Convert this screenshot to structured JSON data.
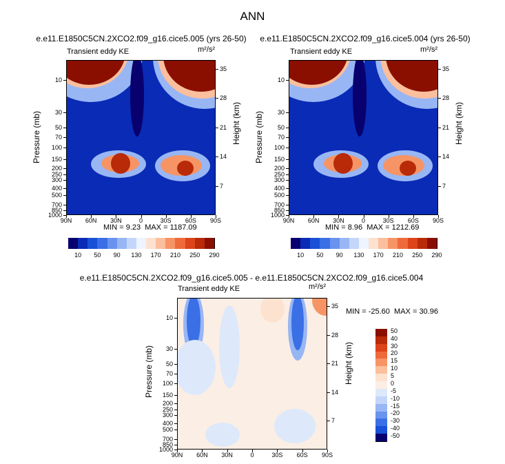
{
  "page_title": "ANN",
  "panels": [
    {
      "title": "e.e11.E1850C5CN.2XCO2.f09_g16.cice5.005 (yrs 26-50)",
      "variable": "Transient eddy KE",
      "units": "m²/s²",
      "min_label": "MIN =",
      "min_value": "9.23",
      "max_label": "MAX =",
      "max_value": "1187.09"
    },
    {
      "title": "e.e11.E1850C5CN.2XCO2.f09_g16.cice5.004 (yrs 26-50)",
      "variable": "Transient eddy KE",
      "units": "m²/s²",
      "min_label": "MIN =",
      "min_value": "8.96",
      "max_label": "MAX =",
      "max_value": "1212.69"
    },
    {
      "title": "e.e11.E1850C5CN.2XCO2.f09_g16.cice5.005 - e.e11.E1850C5CN.2XCO2.f09_g16.cice5.004",
      "variable": "Transient eddy KE",
      "units": "m²/s²",
      "min_label": "MIN =",
      "min_value": "-25.60",
      "max_label": "MAX =",
      "max_value": "30.96"
    }
  ],
  "chart_data": [
    {
      "type": "heatmap",
      "title": "e.e11.E1850C5CN.2XCO2.f09_g16.cice5.005 (yrs 26-50)",
      "xlabel": "",
      "ylabel": "Pressure (mb)",
      "ylabel_right": "Height (km)",
      "x_ticks": [
        "90N",
        "60N",
        "30N",
        "0",
        "30S",
        "60S",
        "90S"
      ],
      "y_ticks": [
        "10",
        "30",
        "50",
        "70",
        "100",
        "150",
        "200",
        "250",
        "300",
        "400",
        "500",
        "700",
        "850",
        "1000"
      ],
      "y_ticks_right": [
        "35",
        "28",
        "21",
        "14",
        "7"
      ],
      "colorbar_levels": [
        10,
        30,
        50,
        70,
        90,
        110,
        130,
        150,
        170,
        190,
        210,
        230,
        250,
        270,
        290
      ],
      "colorbar_labels": [
        "10",
        "50",
        "90",
        "130",
        "170",
        "210",
        "250",
        "290"
      ],
      "min": 9.23,
      "max": 1187.09
    },
    {
      "type": "heatmap",
      "title": "e.e11.E1850C5CN.2XCO2.f09_g16.cice5.004 (yrs 26-50)",
      "xlabel": "",
      "ylabel": "Pressure (mb)",
      "ylabel_right": "Height (km)",
      "x_ticks": [
        "90N",
        "60N",
        "30N",
        "0",
        "30S",
        "60S",
        "90S"
      ],
      "y_ticks": [
        "10",
        "30",
        "50",
        "70",
        "100",
        "150",
        "200",
        "250",
        "300",
        "400",
        "500",
        "700",
        "850",
        "1000"
      ],
      "y_ticks_right": [
        "35",
        "28",
        "21",
        "14",
        "7"
      ],
      "colorbar_levels": [
        10,
        30,
        50,
        70,
        90,
        110,
        130,
        150,
        170,
        190,
        210,
        230,
        250,
        270,
        290
      ],
      "colorbar_labels": [
        "10",
        "50",
        "90",
        "130",
        "170",
        "210",
        "250",
        "290"
      ],
      "min": 8.96,
      "max": 1212.69
    },
    {
      "type": "heatmap",
      "title": "e.e11.E1850C5CN.2XCO2.f09_g16.cice5.005 - e.e11.E1850C5CN.2XCO2.f09_g16.cice5.004",
      "xlabel": "",
      "ylabel": "Pressure (mb)",
      "ylabel_right": "Height (km)",
      "x_ticks": [
        "90N",
        "60N",
        "30N",
        "0",
        "30S",
        "60S",
        "90S"
      ],
      "y_ticks": [
        "10",
        "30",
        "50",
        "70",
        "100",
        "150",
        "200",
        "250",
        "300",
        "400",
        "500",
        "700",
        "850",
        "1000"
      ],
      "y_ticks_right": [
        "35",
        "28",
        "21",
        "14",
        "7"
      ],
      "colorbar_levels": [
        -50,
        -40,
        -30,
        -20,
        -15,
        -10,
        -5,
        0,
        5,
        10,
        15,
        20,
        30,
        40,
        50
      ],
      "colorbar_labels": [
        "50",
        "40",
        "30",
        "20",
        "15",
        "10",
        "5",
        "0",
        "-5",
        "-10",
        "-15",
        "-20",
        "-30",
        "-40",
        "-50"
      ],
      "min": -25.6,
      "max": 30.96
    }
  ],
  "colormaps": {
    "eke": [
      "#08006e",
      "#0a2bb5",
      "#1950d8",
      "#3a6fe6",
      "#6993ee",
      "#98b6f4",
      "#c3d6fa",
      "#eef4ff",
      "#fde2cf",
      "#fbbf9d",
      "#f69466",
      "#ee6a3a",
      "#dd4419",
      "#b92a08",
      "#8a0f00"
    ],
    "diff": [
      "#8a0f00",
      "#b92a08",
      "#dd4419",
      "#ee6a3a",
      "#f69466",
      "#fbbf9d",
      "#fde2cf",
      "#fbeee4",
      "#dde9fb",
      "#c3d6fa",
      "#98b6f4",
      "#6993ee",
      "#3a6fe6",
      "#1950d8",
      "#08006e"
    ]
  }
}
